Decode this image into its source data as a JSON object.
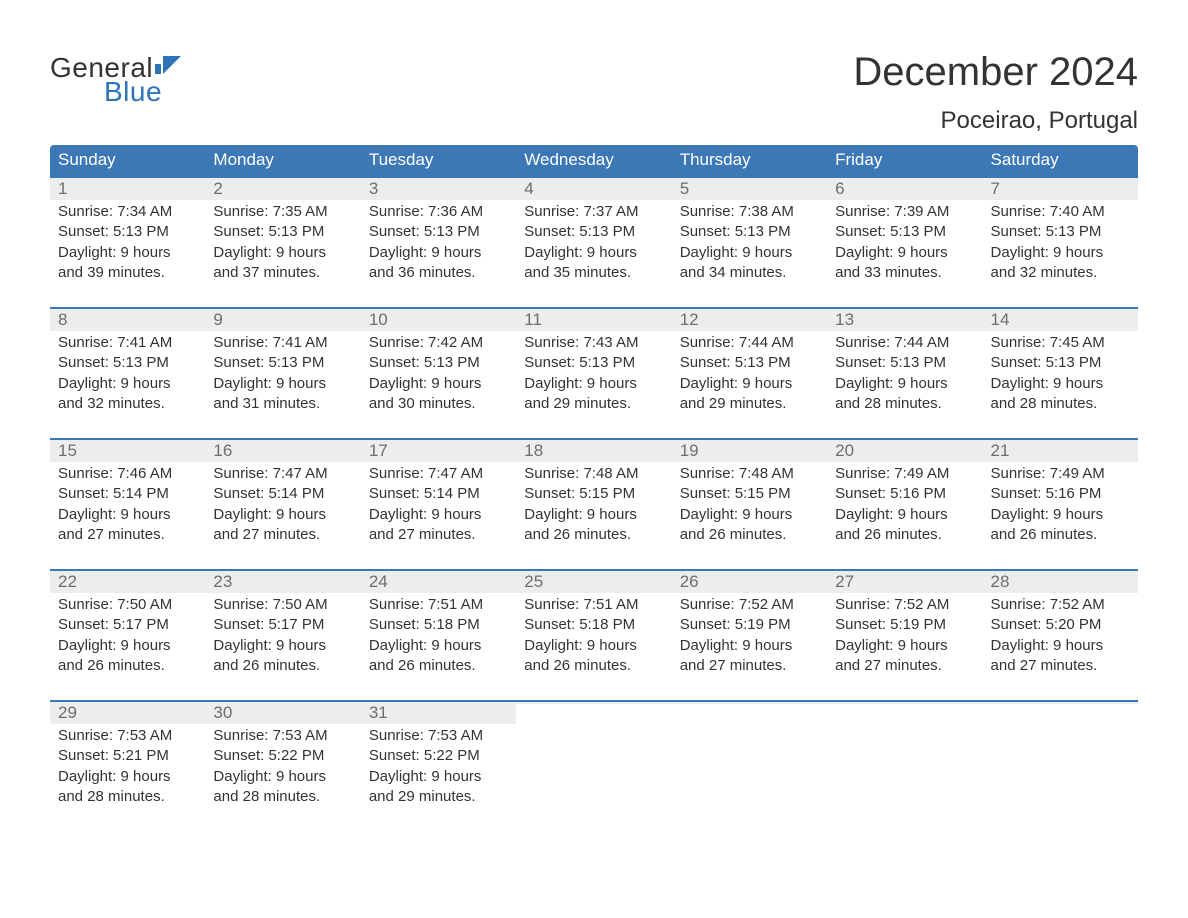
{
  "brand": {
    "line1": "General",
    "line2": "Blue",
    "color1": "#333333",
    "color2": "#2d74b6"
  },
  "title": "December 2024",
  "location": "Poceirao, Portugal",
  "colors": {
    "header_bg": "#3b78b5",
    "header_text": "#ffffff",
    "daynum_bg": "#ededed",
    "daynum_text": "#6e6e6e",
    "body_text": "#333333",
    "week_border": "#3b78b5",
    "page_bg": "#ffffff"
  },
  "font": {
    "family": "Arial",
    "title_size": 40,
    "location_size": 24,
    "dayhead_size": 17,
    "body_size": 15
  },
  "day_names": [
    "Sunday",
    "Monday",
    "Tuesday",
    "Wednesday",
    "Thursday",
    "Friday",
    "Saturday"
  ],
  "weeks": [
    [
      {
        "n": "1",
        "l1": "Sunrise: 7:34 AM",
        "l2": "Sunset: 5:13 PM",
        "l3": "Daylight: 9 hours",
        "l4": "and 39 minutes."
      },
      {
        "n": "2",
        "l1": "Sunrise: 7:35 AM",
        "l2": "Sunset: 5:13 PM",
        "l3": "Daylight: 9 hours",
        "l4": "and 37 minutes."
      },
      {
        "n": "3",
        "l1": "Sunrise: 7:36 AM",
        "l2": "Sunset: 5:13 PM",
        "l3": "Daylight: 9 hours",
        "l4": "and 36 minutes."
      },
      {
        "n": "4",
        "l1": "Sunrise: 7:37 AM",
        "l2": "Sunset: 5:13 PM",
        "l3": "Daylight: 9 hours",
        "l4": "and 35 minutes."
      },
      {
        "n": "5",
        "l1": "Sunrise: 7:38 AM",
        "l2": "Sunset: 5:13 PM",
        "l3": "Daylight: 9 hours",
        "l4": "and 34 minutes."
      },
      {
        "n": "6",
        "l1": "Sunrise: 7:39 AM",
        "l2": "Sunset: 5:13 PM",
        "l3": "Daylight: 9 hours",
        "l4": "and 33 minutes."
      },
      {
        "n": "7",
        "l1": "Sunrise: 7:40 AM",
        "l2": "Sunset: 5:13 PM",
        "l3": "Daylight: 9 hours",
        "l4": "and 32 minutes."
      }
    ],
    [
      {
        "n": "8",
        "l1": "Sunrise: 7:41 AM",
        "l2": "Sunset: 5:13 PM",
        "l3": "Daylight: 9 hours",
        "l4": "and 32 minutes."
      },
      {
        "n": "9",
        "l1": "Sunrise: 7:41 AM",
        "l2": "Sunset: 5:13 PM",
        "l3": "Daylight: 9 hours",
        "l4": "and 31 minutes."
      },
      {
        "n": "10",
        "l1": "Sunrise: 7:42 AM",
        "l2": "Sunset: 5:13 PM",
        "l3": "Daylight: 9 hours",
        "l4": "and 30 minutes."
      },
      {
        "n": "11",
        "l1": "Sunrise: 7:43 AM",
        "l2": "Sunset: 5:13 PM",
        "l3": "Daylight: 9 hours",
        "l4": "and 29 minutes."
      },
      {
        "n": "12",
        "l1": "Sunrise: 7:44 AM",
        "l2": "Sunset: 5:13 PM",
        "l3": "Daylight: 9 hours",
        "l4": "and 29 minutes."
      },
      {
        "n": "13",
        "l1": "Sunrise: 7:44 AM",
        "l2": "Sunset: 5:13 PM",
        "l3": "Daylight: 9 hours",
        "l4": "and 28 minutes."
      },
      {
        "n": "14",
        "l1": "Sunrise: 7:45 AM",
        "l2": "Sunset: 5:13 PM",
        "l3": "Daylight: 9 hours",
        "l4": "and 28 minutes."
      }
    ],
    [
      {
        "n": "15",
        "l1": "Sunrise: 7:46 AM",
        "l2": "Sunset: 5:14 PM",
        "l3": "Daylight: 9 hours",
        "l4": "and 27 minutes."
      },
      {
        "n": "16",
        "l1": "Sunrise: 7:47 AM",
        "l2": "Sunset: 5:14 PM",
        "l3": "Daylight: 9 hours",
        "l4": "and 27 minutes."
      },
      {
        "n": "17",
        "l1": "Sunrise: 7:47 AM",
        "l2": "Sunset: 5:14 PM",
        "l3": "Daylight: 9 hours",
        "l4": "and 27 minutes."
      },
      {
        "n": "18",
        "l1": "Sunrise: 7:48 AM",
        "l2": "Sunset: 5:15 PM",
        "l3": "Daylight: 9 hours",
        "l4": "and 26 minutes."
      },
      {
        "n": "19",
        "l1": "Sunrise: 7:48 AM",
        "l2": "Sunset: 5:15 PM",
        "l3": "Daylight: 9 hours",
        "l4": "and 26 minutes."
      },
      {
        "n": "20",
        "l1": "Sunrise: 7:49 AM",
        "l2": "Sunset: 5:16 PM",
        "l3": "Daylight: 9 hours",
        "l4": "and 26 minutes."
      },
      {
        "n": "21",
        "l1": "Sunrise: 7:49 AM",
        "l2": "Sunset: 5:16 PM",
        "l3": "Daylight: 9 hours",
        "l4": "and 26 minutes."
      }
    ],
    [
      {
        "n": "22",
        "l1": "Sunrise: 7:50 AM",
        "l2": "Sunset: 5:17 PM",
        "l3": "Daylight: 9 hours",
        "l4": "and 26 minutes."
      },
      {
        "n": "23",
        "l1": "Sunrise: 7:50 AM",
        "l2": "Sunset: 5:17 PM",
        "l3": "Daylight: 9 hours",
        "l4": "and 26 minutes."
      },
      {
        "n": "24",
        "l1": "Sunrise: 7:51 AM",
        "l2": "Sunset: 5:18 PM",
        "l3": "Daylight: 9 hours",
        "l4": "and 26 minutes."
      },
      {
        "n": "25",
        "l1": "Sunrise: 7:51 AM",
        "l2": "Sunset: 5:18 PM",
        "l3": "Daylight: 9 hours",
        "l4": "and 26 minutes."
      },
      {
        "n": "26",
        "l1": "Sunrise: 7:52 AM",
        "l2": "Sunset: 5:19 PM",
        "l3": "Daylight: 9 hours",
        "l4": "and 27 minutes."
      },
      {
        "n": "27",
        "l1": "Sunrise: 7:52 AM",
        "l2": "Sunset: 5:19 PM",
        "l3": "Daylight: 9 hours",
        "l4": "and 27 minutes."
      },
      {
        "n": "28",
        "l1": "Sunrise: 7:52 AM",
        "l2": "Sunset: 5:20 PM",
        "l3": "Daylight: 9 hours",
        "l4": "and 27 minutes."
      }
    ],
    [
      {
        "n": "29",
        "l1": "Sunrise: 7:53 AM",
        "l2": "Sunset: 5:21 PM",
        "l3": "Daylight: 9 hours",
        "l4": "and 28 minutes."
      },
      {
        "n": "30",
        "l1": "Sunrise: 7:53 AM",
        "l2": "Sunset: 5:22 PM",
        "l3": "Daylight: 9 hours",
        "l4": "and 28 minutes."
      },
      {
        "n": "31",
        "l1": "Sunrise: 7:53 AM",
        "l2": "Sunset: 5:22 PM",
        "l3": "Daylight: 9 hours",
        "l4": "and 29 minutes."
      },
      {
        "empty": true
      },
      {
        "empty": true
      },
      {
        "empty": true
      },
      {
        "empty": true
      }
    ]
  ]
}
